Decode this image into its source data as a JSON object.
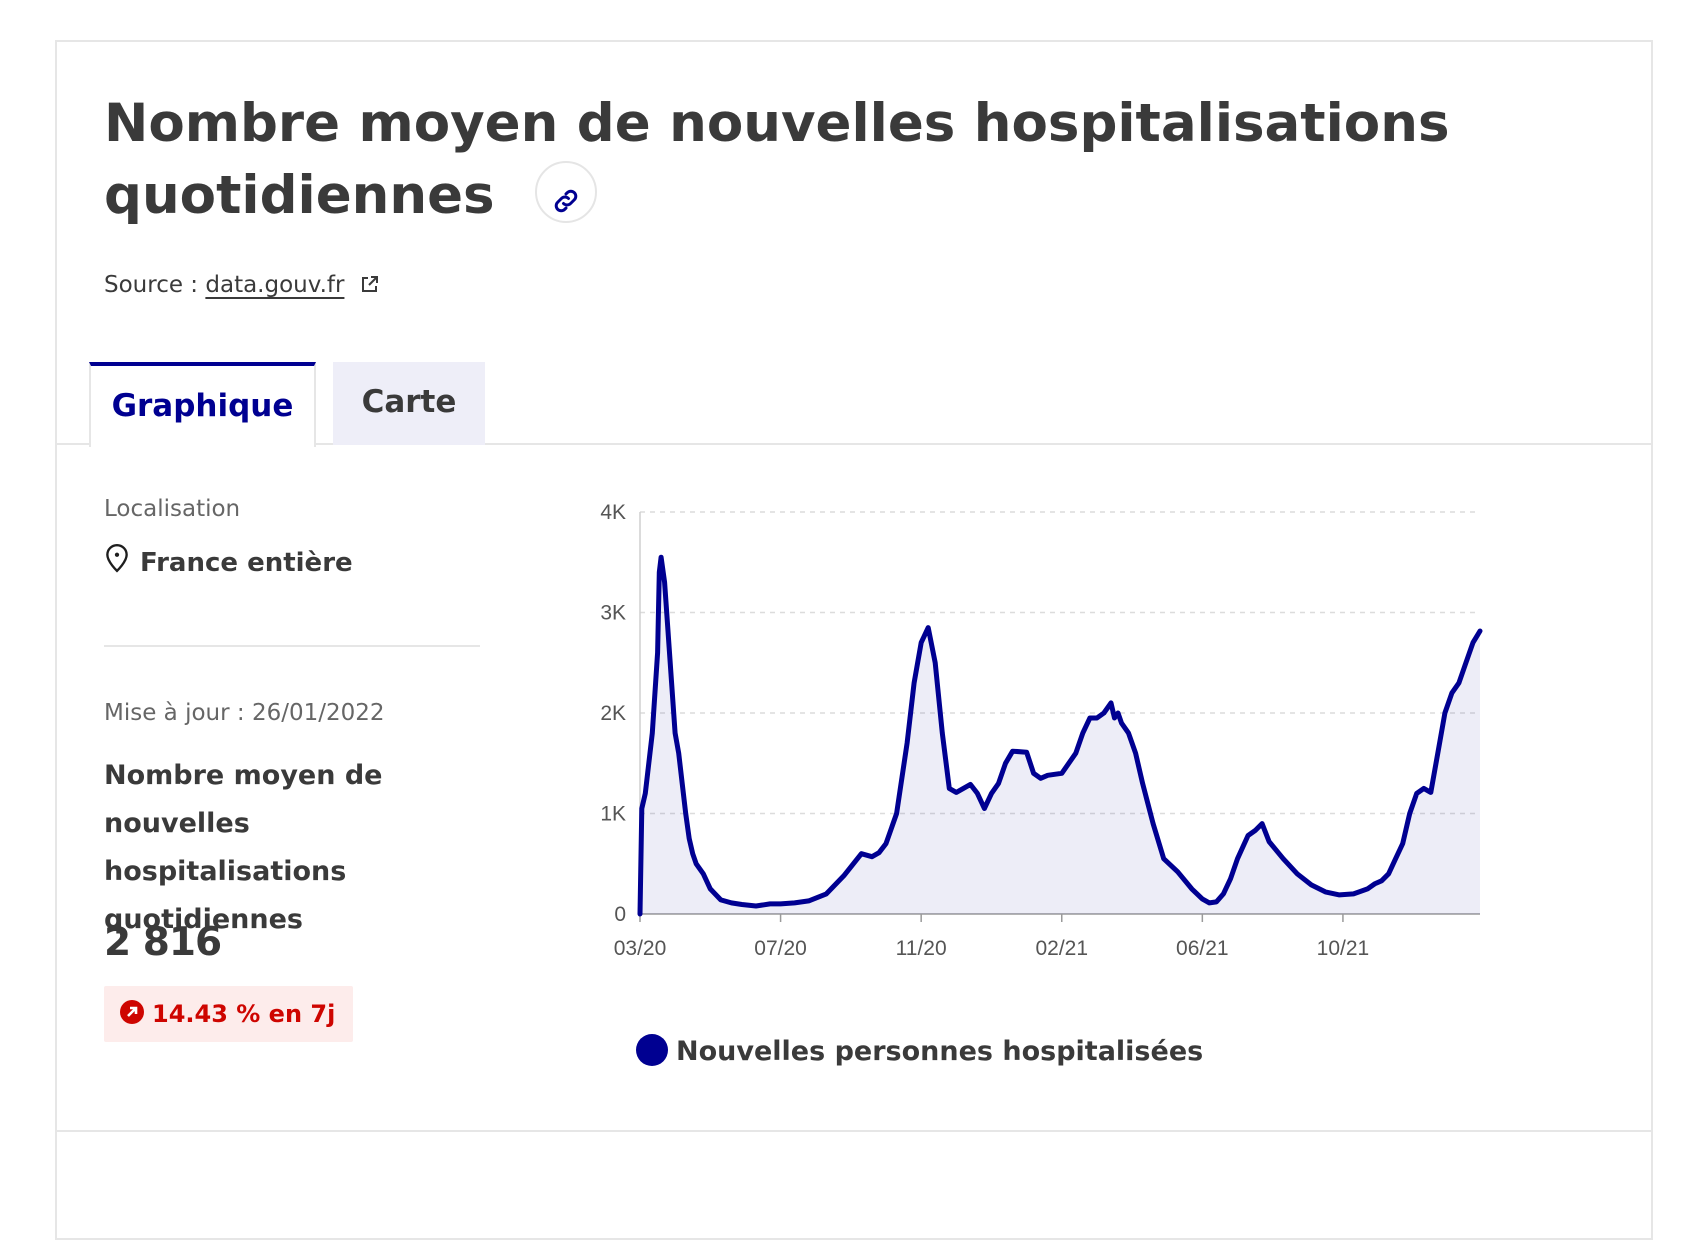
{
  "header": {
    "title_line1": "Nombre moyen de nouvelles hospitalisations",
    "title_line2": "quotidiennes",
    "source_label": "Source :",
    "source_link": "data.gouv.fr"
  },
  "tabs": [
    {
      "label": "Graphique",
      "active": true
    },
    {
      "label": "Carte",
      "active": false
    }
  ],
  "sidebar": {
    "location_label": "Localisation",
    "location_value": "France entière",
    "update_text": "Mise à jour : 26/01/2022",
    "metric_title": "Nombre moyen de nouvelles hospitalisations quotidiennes",
    "metric_value": "2 816",
    "badge_text": "14.43 % en 7j"
  },
  "colors": {
    "accent": "#000091",
    "fill": "#eeeef8",
    "badge_bg": "#fdeceb",
    "badge_fg": "#ce0500"
  },
  "icons": {
    "link": "link-icon",
    "external": "external-link-icon",
    "location": "location-pin-icon",
    "trend": "arrow-up-right-circle-icon"
  },
  "chart_data": {
    "type": "area",
    "ylim": [
      0,
      4000
    ],
    "yticks": [
      0,
      1000,
      2000,
      3000,
      4000
    ],
    "ytick_labels": [
      "0",
      "1K",
      "2K",
      "3K",
      "4K"
    ],
    "xtick_labels": [
      "03/20",
      "07/20",
      "11/20",
      "02/21",
      "06/21",
      "10/21"
    ],
    "xtick_positions": [
      0,
      4,
      8,
      12,
      16,
      20
    ],
    "x_range": [
      0,
      23.9
    ],
    "grid": true,
    "legend_position": "bottom",
    "series": [
      {
        "name": "Nouvelles personnes hospitalisées",
        "color": "#000091",
        "x": [
          0,
          0.05,
          0.15,
          0.35,
          0.5,
          0.55,
          0.6,
          0.7,
          0.8,
          0.9,
          1.0,
          1.1,
          1.2,
          1.3,
          1.4,
          1.5,
          1.6,
          1.8,
          2.0,
          2.3,
          2.6,
          2.9,
          3.3,
          3.7,
          4.0,
          4.4,
          4.8,
          5.3,
          5.8,
          6.3,
          6.6,
          6.8,
          7.0,
          7.3,
          7.6,
          7.8,
          8.0,
          8.2,
          8.4,
          8.6,
          8.8,
          9.0,
          9.4,
          9.6,
          9.8,
          10.0,
          10.2,
          10.4,
          10.6,
          11.0,
          11.2,
          11.4,
          11.6,
          11.8,
          12.0,
          12.4,
          12.6,
          12.8,
          13.0,
          13.2,
          13.4,
          13.5,
          13.6,
          13.7,
          13.9,
          14.1,
          14.3,
          14.6,
          14.9,
          15.3,
          15.7,
          16.0,
          16.2,
          16.4,
          16.6,
          16.8,
          17.0,
          17.3,
          17.5,
          17.7,
          17.9,
          18.3,
          18.7,
          19.1,
          19.5,
          19.9,
          20.3,
          20.7,
          20.9,
          21.1,
          21.3,
          21.5,
          21.7,
          21.9,
          22.1,
          22.3,
          22.5,
          22.7,
          22.9,
          23.1,
          23.3,
          23.5,
          23.7,
          23.9
        ],
        "values": [
          0,
          1050,
          1200,
          1800,
          2600,
          3400,
          3550,
          3300,
          2800,
          2300,
          1800,
          1600,
          1300,
          1000,
          750,
          600,
          500,
          400,
          250,
          140,
          110,
          95,
          80,
          100,
          100,
          110,
          130,
          200,
          380,
          600,
          570,
          610,
          700,
          1000,
          1700,
          2300,
          2700,
          2850,
          2500,
          1800,
          1250,
          1210,
          1290,
          1200,
          1050,
          1200,
          1300,
          1500,
          1620,
          1610,
          1400,
          1350,
          1380,
          1390,
          1400,
          1600,
          1800,
          1950,
          1950,
          2000,
          2100,
          1950,
          2000,
          1900,
          1800,
          1600,
          1300,
          900,
          550,
          420,
          250,
          150,
          110,
          120,
          200,
          350,
          550,
          780,
          830,
          900,
          720,
          550,
          400,
          290,
          220,
          190,
          200,
          250,
          300,
          330,
          400,
          550,
          700,
          1000,
          1200,
          1250,
          1210,
          1600,
          2000,
          2200,
          2300,
          2500,
          2700,
          2816
        ]
      }
    ]
  }
}
